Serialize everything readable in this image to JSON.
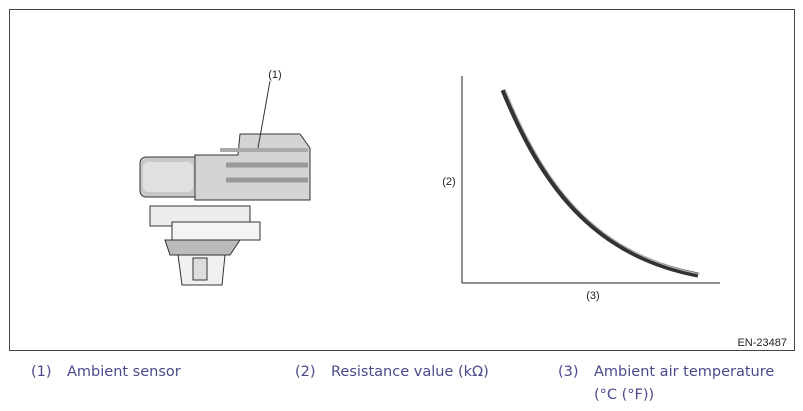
{
  "figure": {
    "callouts": [
      "(1)",
      "(2)",
      "(3)"
    ],
    "figure_id": "EN-23487"
  },
  "legend": [
    {
      "number": "(1)",
      "text": "Ambient sensor"
    },
    {
      "number": "(2)",
      "text": "Resistance value (kΩ)"
    },
    {
      "number": "(3)",
      "text": "Ambient air temperature (°C (°F))"
    }
  ]
}
